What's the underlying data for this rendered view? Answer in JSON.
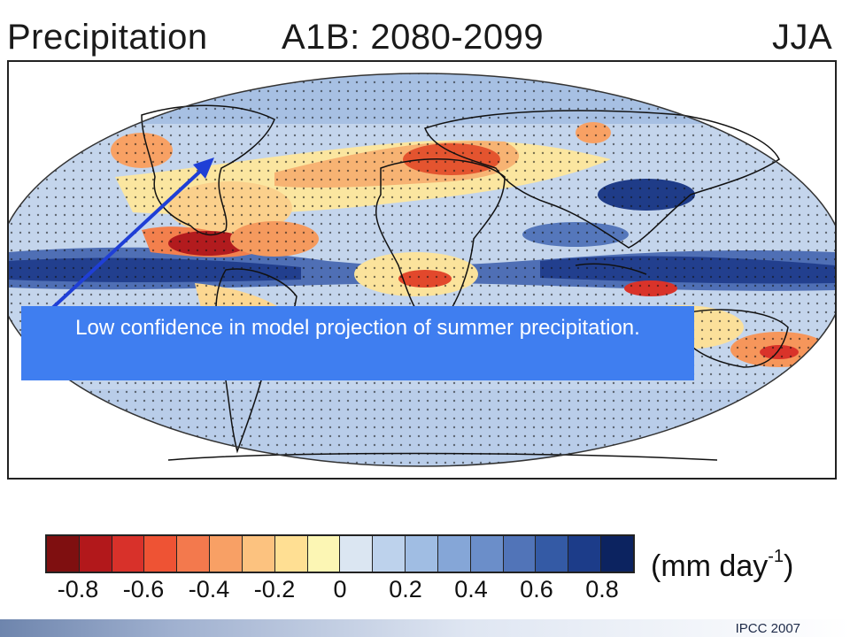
{
  "header": {
    "variable": "Precipitation",
    "scenario": "A1B: 2080-2099",
    "season": "JJA"
  },
  "callout": {
    "text": "Low confidence in model projection of summer precipitation."
  },
  "legend": {
    "units_base": "(mm day",
    "units_exp": "-1",
    "units_close": ")",
    "ticks": [
      "-0.8",
      "-0.6",
      "-0.4",
      "-0.2",
      "0",
      "0.2",
      "0.4",
      "0.6",
      "0.8"
    ],
    "colors": [
      "#7f0f10",
      "#b2181b",
      "#d8312a",
      "#ee5334",
      "#f3794d",
      "#f8a065",
      "#fcc27f",
      "#ffdf93",
      "#fcf6b4",
      "#dbe6f2",
      "#bdd2ec",
      "#a0bde3",
      "#85a6d7",
      "#6b8ec9",
      "#5174b8",
      "#345aa5",
      "#1c3c89",
      "#0c2360"
    ]
  },
  "credit": "IPCC 2007"
}
